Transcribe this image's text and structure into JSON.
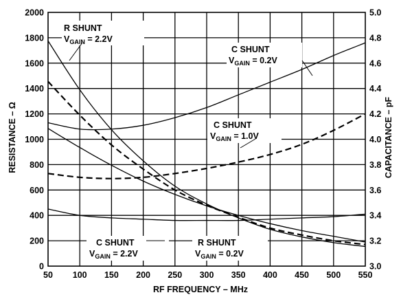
{
  "chart_data": {
    "type": "line",
    "xlabel": "RF FREQUENCY – MHz",
    "ylabel_left": "RESISTANCE – Ω",
    "ylabel_right": "CAPACITANCE – pF",
    "xlim": [
      50,
      550
    ],
    "ylim_left": [
      0,
      2000
    ],
    "ylim_right": [
      3.0,
      5.0
    ],
    "grid": true,
    "x_ticks": [
      "50",
      "100",
      "150",
      "200",
      "250",
      "300",
      "350",
      "400",
      "450",
      "500",
      "550"
    ],
    "y_ticks_left": [
      "0",
      "200",
      "400",
      "600",
      "800",
      "1000",
      "1200",
      "1400",
      "1600",
      "1800",
      "2000"
    ],
    "y_ticks_right": [
      "3.0",
      "3.2",
      "3.4",
      "3.6",
      "3.8",
      "4.0",
      "4.2",
      "4.4",
      "4.6",
      "4.8",
      "5.0"
    ],
    "series": [
      {
        "key": "r_shunt_22",
        "axis": "left",
        "style": "solid",
        "x": [
          50,
          100,
          150,
          200,
          250,
          300,
          350,
          400,
          450,
          500,
          550
        ],
        "y": [
          1775,
          1390,
          1075,
          830,
          630,
          490,
          380,
          290,
          230,
          185,
          155
        ]
      },
      {
        "key": "r_shunt_02",
        "axis": "left",
        "style": "solid",
        "x": [
          50,
          100,
          150,
          200,
          250,
          300,
          350,
          400,
          450,
          500,
          550
        ],
        "y": [
          1085,
          935,
          795,
          670,
          565,
          475,
          400,
          335,
          280,
          235,
          190
        ]
      },
      {
        "key": "r_shunt_10",
        "axis": "left",
        "style": "dashed",
        "x": [
          50,
          100,
          150,
          200,
          250,
          300,
          350,
          400,
          450,
          500,
          550
        ],
        "y": [
          1455,
          1190,
          955,
          765,
          600,
          480,
          385,
          300,
          245,
          200,
          170
        ]
      },
      {
        "key": "c_shunt_02",
        "axis": "right",
        "style": "solid",
        "x": [
          50,
          100,
          150,
          200,
          250,
          300,
          350,
          400,
          450,
          500,
          550
        ],
        "y": [
          4.13,
          4.08,
          4.08,
          4.11,
          4.17,
          4.25,
          4.35,
          4.45,
          4.55,
          4.66,
          4.76
        ]
      },
      {
        "key": "c_shunt_10",
        "axis": "right",
        "style": "dashed",
        "x": [
          50,
          100,
          150,
          200,
          250,
          300,
          350,
          400,
          450,
          500,
          550
        ],
        "y": [
          3.73,
          3.7,
          3.69,
          3.7,
          3.73,
          3.77,
          3.82,
          3.88,
          3.96,
          4.07,
          4.2
        ]
      },
      {
        "key": "c_shunt_22",
        "axis": "right",
        "style": "solid",
        "x": [
          50,
          100,
          150,
          200,
          250,
          300,
          350,
          400,
          450,
          500,
          550
        ],
        "y": [
          3.45,
          3.4,
          3.38,
          3.37,
          3.36,
          3.36,
          3.36,
          3.37,
          3.38,
          3.39,
          3.41
        ]
      }
    ],
    "annotations": [
      {
        "key": "r22",
        "line1": "R SHUNT",
        "v_prefix": "V",
        "v_sub": "GAIN",
        "v_suffix": " = 2.2V"
      },
      {
        "key": "c02",
        "line1": "C SHUNT",
        "v_prefix": "V",
        "v_sub": "GAIN",
        "v_suffix": " = 0.2V"
      },
      {
        "key": "c10",
        "line1": "C SHUNT",
        "v_prefix": "V",
        "v_sub": "GAIN",
        "v_suffix": " = 1.0V"
      },
      {
        "key": "c22",
        "line1": "C SHUNT",
        "v_prefix": "V",
        "v_sub": "GAIN",
        "v_suffix": " = 2.2V"
      },
      {
        "key": "r02",
        "line1": "R SHUNT",
        "v_prefix": "V",
        "v_sub": "GAIN",
        "v_suffix": " = 0.2V"
      }
    ]
  }
}
